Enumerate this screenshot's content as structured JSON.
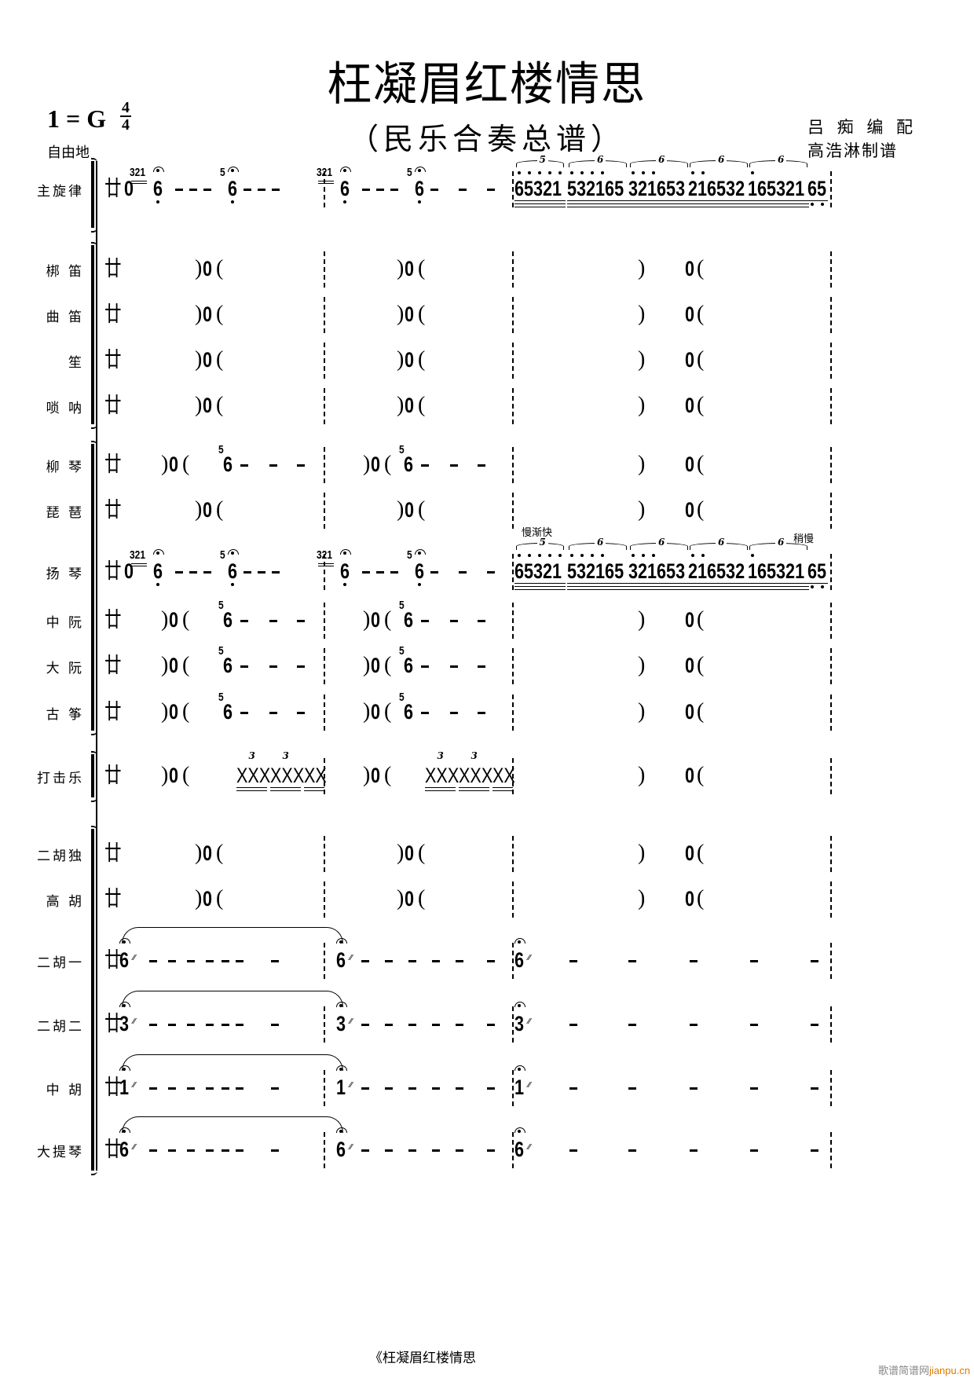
{
  "header": {
    "title": "枉凝眉红楼情思",
    "subtitle": "（民乐合奏总谱）",
    "key": "1 = G",
    "time_signature": {
      "top": "4",
      "bottom": "4"
    },
    "tempo": "自由地",
    "arranger": "吕 痴 编 配",
    "transcriber": "高浩淋制谱"
  },
  "staves": [
    {
      "label": "主旋律",
      "part": "melody"
    },
    {
      "label": "梆  笛",
      "part": "rest"
    },
    {
      "label": "曲  笛",
      "part": "rest"
    },
    {
      "label": "笙",
      "part": "rest"
    },
    {
      "label": "唢  呐",
      "part": "rest"
    },
    {
      "label": "柳  琴",
      "part": "sustain"
    },
    {
      "label": "琵  琶",
      "part": "rest"
    },
    {
      "label": "扬  琴",
      "part": "melody"
    },
    {
      "label": "中  阮",
      "part": "sustain"
    },
    {
      "label": "大  阮",
      "part": "sustain"
    },
    {
      "label": "古  筝",
      "part": "sustain"
    },
    {
      "label": "打击乐",
      "part": "percussion"
    },
    {
      "label": "二胡独",
      "part": "rest"
    },
    {
      "label": "高  胡",
      "part": "rest"
    },
    {
      "label": "二胡一",
      "part": "strings",
      "note": "6"
    },
    {
      "label": "二胡二",
      "part": "strings",
      "note": "3"
    },
    {
      "label": "中  胡",
      "part": "strings",
      "note": "1"
    },
    {
      "label": "大提琴",
      "part": "strings",
      "note": "6"
    }
  ],
  "notation": {
    "free_meter": "廿",
    "rest": "0",
    "paren_open": "(",
    "paren_close": ")",
    "grace_long": "321",
    "grace_short": "5",
    "sustain_note": "6",
    "runs": [
      "65321",
      "532165",
      "321653",
      "216532",
      "165321",
      "65"
    ],
    "run_high_octave_dots": [
      5,
      4,
      3,
      2,
      1,
      0
    ],
    "run_low_octave_dots": [
      0,
      0,
      0,
      0,
      0,
      2
    ],
    "run_tuplets": [
      "5",
      "6",
      "6",
      "6",
      "6"
    ],
    "percussion_groups": [
      "XXX",
      "XXX",
      "XX"
    ],
    "percussion_tuplet": "3",
    "tempo_marks": {
      "accel": "慢渐快",
      "rit": "稍慢"
    }
  },
  "footer": {
    "caption": "《枉凝眉红楼情思",
    "watermark_cn": "歌谱简谱网",
    "watermark_url": "jianpu.cn"
  }
}
